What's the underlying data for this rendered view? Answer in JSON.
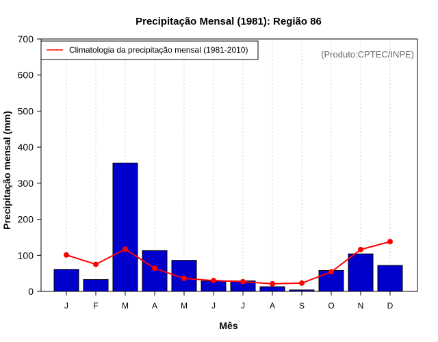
{
  "chart_data": {
    "type": "bar",
    "title": "Precipitação Mensal (1981): Região 86",
    "xlabel": "Mês",
    "ylabel": "Precipitação mensal (mm)",
    "ylim": [
      0,
      700
    ],
    "yticks": [
      0,
      100,
      200,
      300,
      400,
      500,
      600,
      700
    ],
    "categories": [
      "J",
      "F",
      "M",
      "A",
      "M",
      "J",
      "J",
      "A",
      "S",
      "O",
      "N",
      "D"
    ],
    "grid": "vertical dotted",
    "legend_position": "top-left",
    "series": [
      {
        "name": "Precipitação mensal (1981)",
        "type": "bar",
        "color": "#0000CD",
        "values": [
          61,
          33,
          356,
          113,
          86,
          29,
          29,
          13,
          4,
          58,
          104,
          72
        ]
      },
      {
        "name": "Climatologia da precipitação mensal (1981-2010)",
        "type": "line",
        "color": "#FF0000",
        "values": [
          101,
          75,
          117,
          64,
          36,
          30,
          27,
          21,
          23,
          54,
          116,
          138
        ]
      }
    ],
    "legend": [
      "Climatologia da precipitação mensal (1981-2010)"
    ],
    "annotation": "(Produto:CPTEC/INPE)"
  }
}
